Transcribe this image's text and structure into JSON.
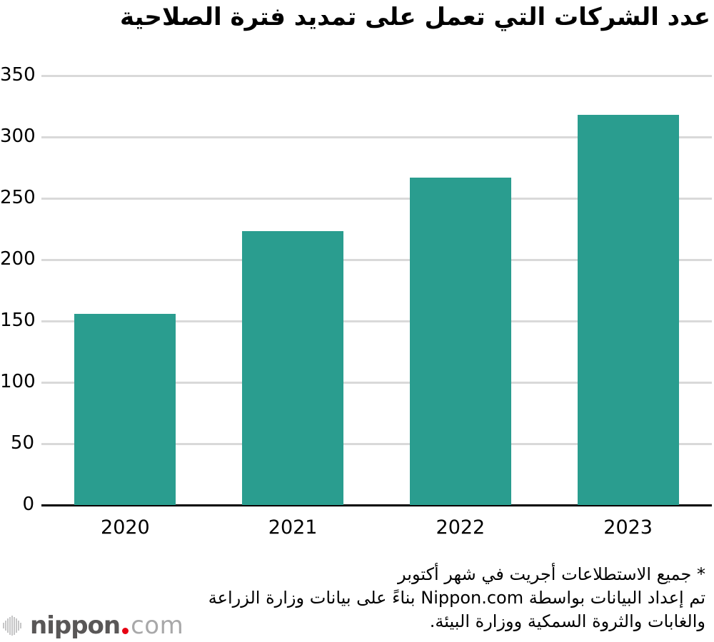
{
  "chart_data": {
    "type": "bar",
    "title": "عدد الشركات التي تعمل على تمديد فترة الصلاحية",
    "categories": [
      "2020",
      "2021",
      "2022",
      "2023"
    ],
    "values": [
      156,
      223,
      267,
      318
    ],
    "xlabel": "",
    "ylabel": "",
    "ylim": [
      0,
      350
    ],
    "yticks": [
      0,
      50,
      100,
      150,
      200,
      250,
      300,
      350
    ],
    "grid": true,
    "legend": false,
    "bar_color": "#2a9d8f"
  },
  "footnote": {
    "lines": [
      "* جميع الاستطلاعات أجريت في شهر أكتوبر",
      "تم إعداد البيانات بواسطة Nippon.com بناءً على بيانات وزارة الزراعة",
      "والغابات والثروة السمكية ووزارة البيئة."
    ]
  },
  "logo": {
    "name": "nippon",
    "tld": "com"
  },
  "colors": {
    "bar": "#2a9d8f",
    "grid": "#d9d9d9",
    "axis": "#000000",
    "title_text": "#000000",
    "logo_text": "#595757",
    "logo_tld": "#a8a8a9",
    "logo_dot": "#e60012",
    "logo_mark": "#c6c6c7"
  }
}
